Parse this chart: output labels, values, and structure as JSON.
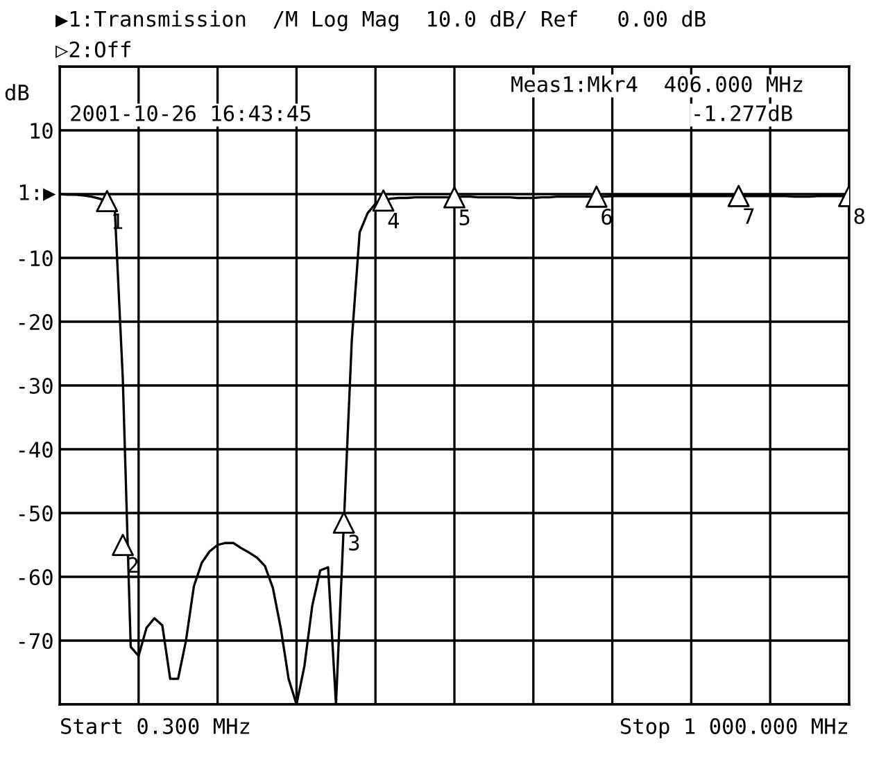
{
  "chart_data": {
    "type": "line",
    "title": "▶1:Transmission  /M Log Mag  10.0 dB/ Ref   0.00 dB",
    "subtitle": "▷2:Off",
    "ylabel": "dB",
    "categories": [
      null,
      null,
      null,
      null,
      null,
      null,
      null,
      null,
      null,
      null,
      null,
      null,
      null,
      null,
      null,
      null,
      null,
      null,
      null,
      null,
      null,
      null,
      null,
      null,
      null,
      null,
      null,
      null,
      null,
      null,
      null,
      null,
      null,
      null,
      null,
      null,
      null,
      null,
      null,
      null,
      null,
      null,
      null,
      null,
      null,
      null,
      null,
      null,
      null,
      null,
      null,
      null,
      null,
      null,
      null,
      null,
      null,
      null,
      null,
      null,
      null,
      null,
      null,
      null,
      null,
      null,
      null,
      null,
      null,
      null,
      null,
      null,
      null,
      null,
      null,
      null,
      null,
      null,
      null,
      null,
      null,
      null,
      null,
      null,
      null,
      null,
      null,
      null,
      null,
      null,
      null,
      null,
      null,
      null,
      null,
      null,
      null,
      null,
      null,
      null,
      null
    ],
    "series": [
      {
        "color": "#000000",
        "values": [
          0,
          -0.1,
          -0.1,
          -0.2,
          -0.4,
          -0.7,
          -1.1,
          -2.8,
          -29,
          -71,
          -72.4,
          -68,
          -66.5,
          -67.6,
          -76,
          -76,
          -70,
          -61.5,
          -57.8,
          -56,
          -55,
          -54.7,
          -54.7,
          -55.5,
          -56.2,
          -57,
          -58.3,
          -61.7,
          -68,
          -76,
          -80,
          -74,
          -64.5,
          -59,
          -58.5,
          -80,
          -51.5,
          -23,
          -6,
          -3,
          -1.5,
          -1,
          -0.7,
          -0.6,
          -0.6,
          -0.5,
          -0.5,
          -0.5,
          -0.5,
          -0.5,
          -0.5,
          -0.4,
          -0.4,
          -0.5,
          -0.5,
          -0.5,
          -0.5,
          -0.5,
          -0.6,
          -0.6,
          -0.6,
          -0.5,
          -0.5,
          -0.4,
          -0.4,
          -0.4,
          -0.4,
          -0.4,
          -0.4,
          -0.4,
          -0.3,
          -0.3,
          -0.3,
          -0.3,
          -0.3,
          -0.3,
          -0.3,
          -0.3,
          -0.3,
          -0.3,
          -0.3,
          -0.3,
          -0.3,
          -0.3,
          -0.3,
          -0.3,
          -0.3,
          -0.3,
          -0.3,
          -0.3,
          -0.3,
          -0.3,
          -0.3,
          -0.4,
          -0.4,
          -0.4,
          -0.3,
          -0.3,
          -0.3,
          -0.3,
          -0.3
        ]
      },
      {
        "type": "scatter",
        "marker": "triangle",
        "color": "#000000",
        "values": [
          null,
          null,
          null,
          null,
          null,
          null,
          -1.1,
          null,
          -55,
          null,
          null,
          null,
          null,
          null,
          null,
          null,
          null,
          null,
          null,
          null,
          null,
          null,
          null,
          null,
          null,
          null,
          null,
          null,
          null,
          null,
          null,
          null,
          null,
          null,
          null,
          null,
          -51.5,
          null,
          null,
          null,
          null,
          -1,
          null,
          null,
          null,
          null,
          null,
          null,
          null,
          null,
          -0.5,
          null,
          null,
          null,
          null,
          null,
          null,
          null,
          null,
          null,
          null,
          null,
          null,
          null,
          null,
          null,
          null,
          null,
          -0.4,
          null,
          null,
          null,
          null,
          null,
          null,
          null,
          null,
          null,
          null,
          null,
          null,
          null,
          null,
          null,
          null,
          null,
          -0.3,
          null,
          null,
          null,
          null,
          null,
          null,
          null,
          null,
          null,
          null,
          null,
          null,
          null,
          -0.3
        ]
      }
    ],
    "annotations": [
      "2001-10-26 16:43:45",
      "Meas1:Mkr4  406.000 MHz",
      "-1.277dB",
      "Start 0.300 MHz",
      "Stop 1 000.000 MHz",
      "1",
      "2",
      "3",
      "4",
      "5",
      "6",
      "7",
      "8"
    ],
    "ylim": [
      -80,
      20
    ],
    "yticks": [
      {
        "value": -80,
        "label": null
      },
      -70,
      -60,
      -50,
      -40,
      -30,
      -20,
      -10,
      10,
      {
        "value": 20,
        "label": null
      }
    ],
    "ref_lines": [
      {
        "axis": "y",
        "value": 0,
        "label": "1:▶",
        "color": "#000000"
      }
    ],
    "tick_labels": "y",
    "grid": true,
    "legend": false,
    "marker": "none",
    "line_style": "solid"
  }
}
